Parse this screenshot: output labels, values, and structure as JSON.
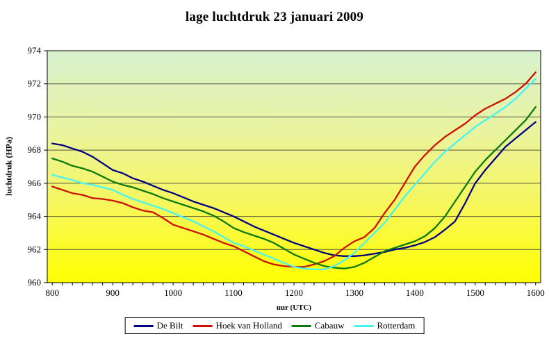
{
  "title": "lage luchtdruk 23 januari 2009",
  "chart_data": {
    "type": "line",
    "title": "lage luchtdruk 23 januari 2009",
    "xlabel": "uur (UTC)",
    "ylabel": "luchtdruk (HPa)",
    "ylim": [
      960,
      974
    ],
    "y_ticks": [
      960,
      962,
      964,
      966,
      968,
      970,
      972,
      974
    ],
    "x_hour_labels": [
      "800",
      "900",
      "1000",
      "1100",
      "1200",
      "1300",
      "1400",
      "1500",
      "1600"
    ],
    "x_times": [
      800,
      810,
      820,
      830,
      840,
      850,
      900,
      910,
      920,
      930,
      940,
      950,
      1000,
      1010,
      1020,
      1030,
      1040,
      1050,
      1100,
      1110,
      1120,
      1130,
      1140,
      1150,
      1200,
      1210,
      1220,
      1230,
      1240,
      1250,
      1300,
      1310,
      1320,
      1330,
      1340,
      1350,
      1400,
      1410,
      1420,
      1430,
      1440,
      1450,
      1500,
      1510,
      1520,
      1530,
      1540,
      1550,
      1600
    ],
    "grid": "horizontal",
    "legend_position": "bottom",
    "gridline_color": "#55553a",
    "plot_border_color": "#000000",
    "plot_bg_gradient": [
      "#d8f2cf",
      "#e9f3a2",
      "#f7f75c",
      "#ffff00"
    ],
    "series": [
      {
        "name": "De Bilt",
        "color": "#000080",
        "values": [
          968.4,
          968.3,
          968.1,
          967.9,
          967.6,
          967.2,
          966.8,
          966.6,
          966.3,
          966.1,
          965.85,
          965.6,
          965.4,
          965.15,
          964.9,
          964.7,
          964.5,
          964.25,
          964.0,
          963.7,
          963.4,
          963.15,
          962.9,
          962.65,
          962.4,
          962.2,
          962.0,
          961.8,
          961.65,
          961.6,
          961.6,
          961.65,
          961.75,
          961.85,
          962.0,
          962.1,
          962.25,
          962.45,
          962.75,
          963.2,
          963.7,
          964.8,
          966.0,
          966.8,
          967.5,
          968.2,
          968.7,
          969.2,
          969.7
        ]
      },
      {
        "name": "Hoek van Holland",
        "color": "#cc1100",
        "values": [
          965.8,
          965.6,
          965.4,
          965.3,
          965.1,
          965.05,
          964.95,
          964.8,
          964.55,
          964.35,
          964.25,
          963.9,
          963.5,
          963.3,
          963.1,
          962.9,
          962.65,
          962.4,
          962.2,
          961.9,
          961.6,
          961.3,
          961.1,
          961.0,
          960.95,
          960.95,
          961.1,
          961.3,
          961.6,
          962.1,
          962.5,
          962.75,
          963.3,
          964.2,
          965.0,
          966.0,
          967.0,
          967.7,
          968.3,
          968.8,
          969.2,
          969.6,
          970.1,
          970.5,
          970.8,
          971.1,
          971.5,
          972.0,
          972.7
        ]
      },
      {
        "name": "Cabauw",
        "color": "#0b7a0b",
        "values": [
          967.5,
          967.3,
          967.05,
          966.9,
          966.7,
          966.4,
          966.1,
          965.9,
          965.75,
          965.55,
          965.35,
          965.1,
          964.9,
          964.7,
          964.5,
          964.3,
          964.05,
          963.7,
          963.3,
          963.05,
          962.85,
          962.65,
          962.4,
          962.05,
          961.7,
          961.45,
          961.2,
          961.0,
          960.9,
          960.85,
          960.95,
          961.2,
          961.55,
          961.9,
          962.1,
          962.3,
          962.5,
          962.8,
          963.3,
          964.0,
          964.9,
          965.8,
          966.7,
          967.4,
          968.0,
          968.6,
          969.2,
          969.8,
          970.6
        ]
      },
      {
        "name": "Rotterdam",
        "color": "#45f5f5",
        "values": [
          966.5,
          966.35,
          966.2,
          966.0,
          965.9,
          965.75,
          965.6,
          965.3,
          965.05,
          964.85,
          964.65,
          964.45,
          964.2,
          963.95,
          963.7,
          963.4,
          963.1,
          962.75,
          962.4,
          962.2,
          961.95,
          961.7,
          961.45,
          961.2,
          960.95,
          960.85,
          960.8,
          960.8,
          961.0,
          961.35,
          961.8,
          962.4,
          963.0,
          963.6,
          964.4,
          965.2,
          965.9,
          966.6,
          967.3,
          967.9,
          968.4,
          968.9,
          969.4,
          969.8,
          970.2,
          970.6,
          971.1,
          971.7,
          972.3
        ]
      }
    ]
  }
}
